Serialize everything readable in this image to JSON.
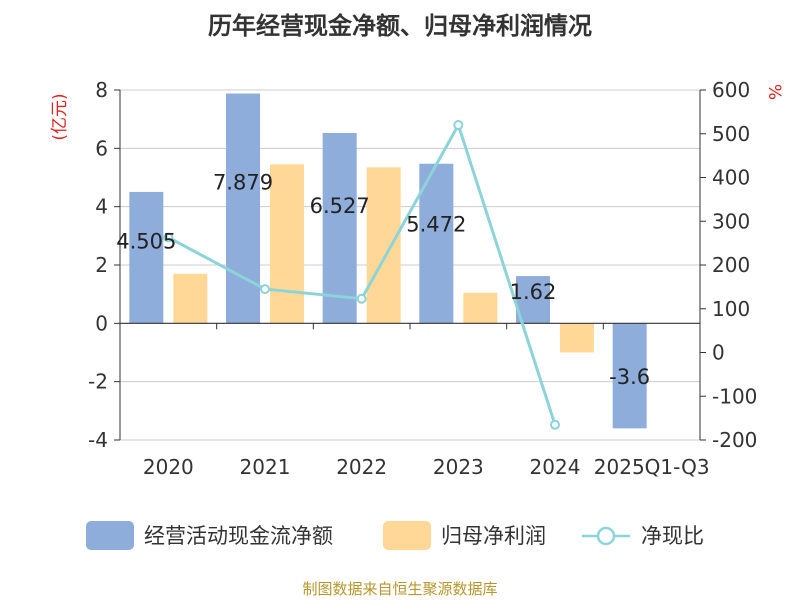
{
  "chart_data": {
    "type": "bar",
    "title": "历年经营现金净额、归母净利润情况",
    "categories": [
      "2020",
      "2021",
      "2022",
      "2023",
      "2024",
      "2025Q1-Q3"
    ],
    "series": [
      {
        "name": "经营活动现金流净额",
        "type": "bar",
        "axis": "left",
        "color": "#8eaddb",
        "values": [
          4.505,
          7.879,
          6.527,
          5.472,
          1.62,
          -3.6
        ],
        "labels": [
          "4.505",
          "7.879",
          "6.527",
          "5.472",
          "1.62",
          "-3.6"
        ]
      },
      {
        "name": "归母净利润",
        "type": "bar",
        "axis": "left",
        "color": "#ffd898",
        "values": [
          1.7,
          5.45,
          5.35,
          1.05,
          -1.0,
          null
        ]
      },
      {
        "name": "净现比",
        "type": "line",
        "axis": "right",
        "color": "#8cd4d8",
        "values": [
          263,
          145,
          123,
          520,
          -165,
          null
        ]
      }
    ],
    "y_left": {
      "unit": "(亿元)",
      "min": -4,
      "max": 8,
      "ticks": [
        -4,
        -2,
        0,
        2,
        4,
        6,
        8
      ]
    },
    "y_right": {
      "unit": "%",
      "min": -200,
      "max": 600,
      "ticks": [
        -200,
        -100,
        0,
        100,
        200,
        300,
        400,
        500,
        600
      ]
    },
    "source": "制图数据来自恒生聚源数据库"
  }
}
